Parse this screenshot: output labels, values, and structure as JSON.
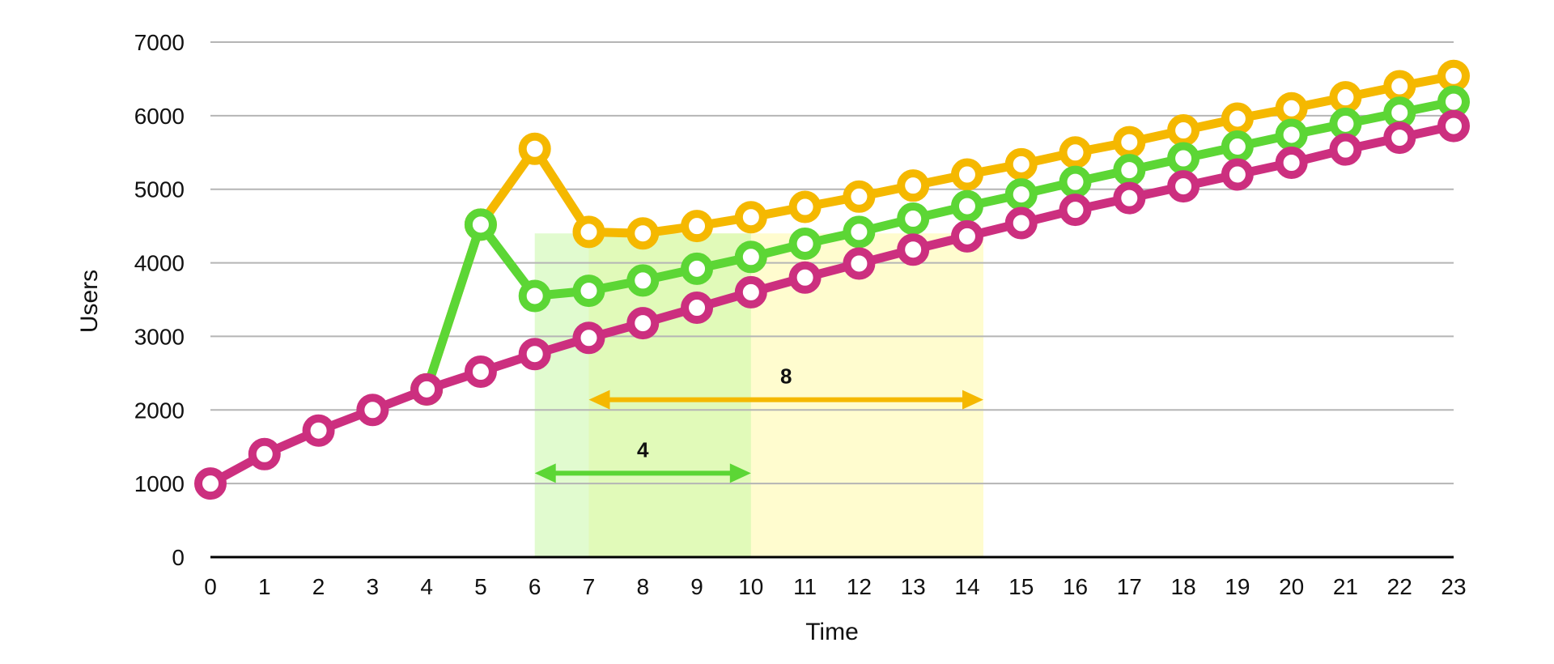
{
  "chart_data": {
    "type": "line",
    "xlabel": "Time",
    "ylabel": "Users",
    "x": [
      0,
      1,
      2,
      3,
      4,
      5,
      6,
      7,
      8,
      9,
      10,
      11,
      12,
      13,
      14,
      15,
      16,
      17,
      18,
      19,
      20,
      21,
      22,
      23
    ],
    "ylim": [
      0,
      7000
    ],
    "yticks": [
      0,
      1000,
      2000,
      3000,
      4000,
      5000,
      6000,
      7000
    ],
    "grid": true,
    "series": [
      {
        "color": "#f5b800",
        "x": [
          4,
          5,
          6,
          7,
          8,
          9,
          10,
          11,
          12,
          13,
          14,
          15,
          16,
          17,
          18,
          19,
          20,
          21,
          22,
          23
        ],
        "values": [
          2280,
          4520,
          5550,
          4420,
          4400,
          4500,
          4620,
          4760,
          4900,
          5050,
          5200,
          5340,
          5500,
          5640,
          5800,
          5960,
          6100,
          6250,
          6400,
          6540
        ]
      },
      {
        "color": "#5cd635",
        "x": [
          4,
          5,
          6,
          7,
          8,
          9,
          10,
          11,
          12,
          13,
          14,
          15,
          16,
          17,
          18,
          19,
          20,
          21,
          22,
          23
        ],
        "values": [
          2280,
          4520,
          3550,
          3620,
          3760,
          3920,
          4080,
          4260,
          4420,
          4600,
          4770,
          4930,
          5100,
          5260,
          5420,
          5580,
          5740,
          5890,
          6040,
          6190
        ]
      },
      {
        "color": "#cc2f7f",
        "x": [
          0,
          1,
          2,
          3,
          4,
          5,
          6,
          7,
          8,
          9,
          10,
          11,
          12,
          13,
          14,
          15,
          16,
          17,
          18,
          19,
          20,
          21,
          22,
          23
        ],
        "values": [
          1000,
          1400,
          1720,
          2000,
          2280,
          2520,
          2760,
          2980,
          3180,
          3390,
          3600,
          3800,
          3990,
          4180,
          4360,
          4540,
          4720,
          4880,
          5040,
          5200,
          5360,
          5540,
          5700,
          5860
        ]
      }
    ],
    "annotations": [
      {
        "label": "8",
        "from": 7,
        "to": 14.3,
        "y": 2140,
        "color": "#f5b800",
        "fill": "#fff9a8"
      },
      {
        "label": "4",
        "from": 6,
        "to": 10,
        "y": 1140,
        "color": "#5cd635",
        "fill": "#c9f7a8"
      }
    ]
  }
}
